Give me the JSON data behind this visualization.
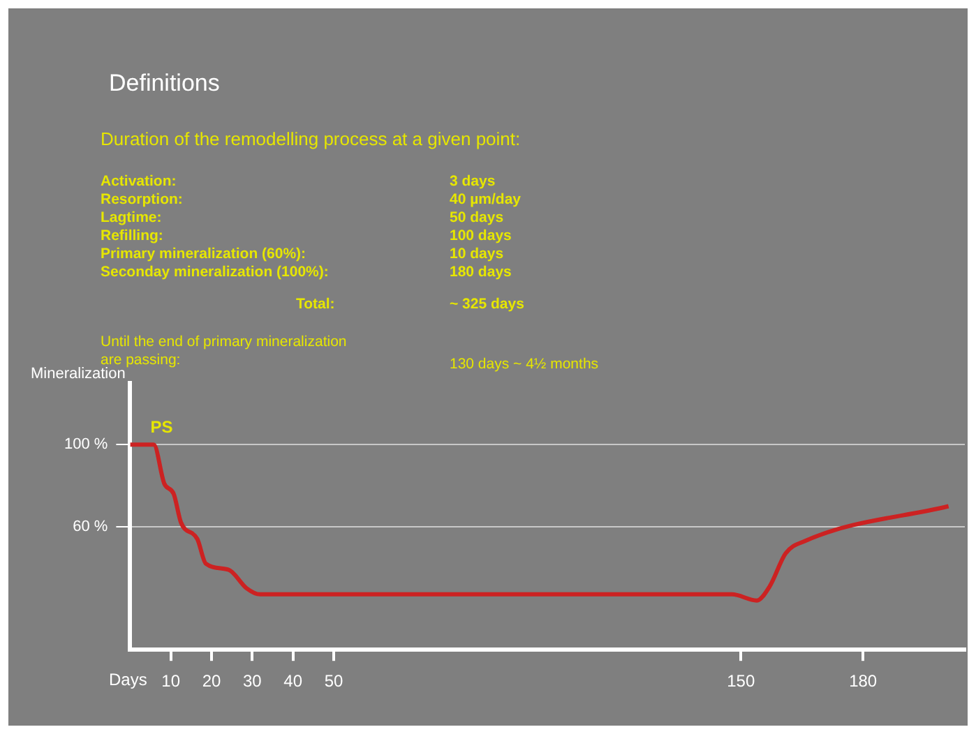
{
  "chart_data": {
    "type": "line",
    "title": "Definitions",
    "subtitle": "Duration of the remodelling process at a given point:",
    "xlabel": "Days",
    "ylabel": "Mineralization",
    "annotations": [
      "Activation:",
      "3 days",
      "Resorption:",
      "40 µm/day",
      "Lagtime:",
      "50 days",
      "Refilling:",
      "100 days",
      "Primary mineralization (60%):",
      "10 days",
      "Seconday mineralization (100%):",
      "180 days",
      "Total:",
      "~ 325 days",
      "Until the end of primary mineralization are passing:",
      "130 days ~ 4½ months",
      {
        "text": "PS",
        "x": 5,
        "y": 100
      }
    ],
    "x": [
      0,
      5.8,
      8.4,
      10.7,
      12.5,
      16.5,
      18.6,
      24.2,
      28.6,
      31.9,
      147.8,
      153.9,
      157.1,
      161,
      165.7,
      201
    ],
    "series": [
      {
        "color": "#cc2222",
        "values": [
          100,
          100,
          81,
          76,
          62,
          54,
          42,
          39,
          30,
          27,
          27,
          24,
          31,
          47,
          53,
          70
        ]
      }
    ],
    "xlim": [
      0,
      205
    ],
    "xticks": [
      10,
      20,
      30,
      40,
      50,
      150,
      180
    ],
    "ylim": [
      0,
      130
    ],
    "yticks": [
      {
        "value": 60,
        "label": "60 %"
      },
      {
        "value": 100,
        "label": "100 %"
      }
    ],
    "grid": "y",
    "legend": false,
    "marker": "none",
    "line_style": "solid"
  }
}
